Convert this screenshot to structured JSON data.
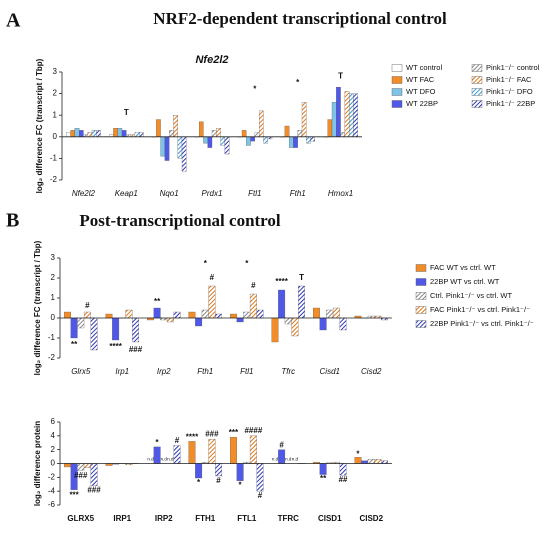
{
  "panels": [
    {
      "letter": "A",
      "heading": "NRF2-dependent transcriptional control"
    },
    {
      "letter": "B",
      "heading": "Post-transcriptional control"
    }
  ],
  "chart_data": [
    {
      "type": "bar",
      "title": "Nfe2l2",
      "ylabel": "log₂ difference FC (transcript / Tbp)",
      "categories": [
        "Nfe2l2",
        "Keap1",
        "Nqo1",
        "Prdx1",
        "Ftl1",
        "Fth1",
        "Hmox1"
      ],
      "ylim": [
        -2,
        3
      ],
      "yticks": [
        -2,
        -1,
        0,
        1,
        2,
        3
      ],
      "legend": "right",
      "series": [
        {
          "name": "WT control",
          "color": "#ffffff",
          "values": [
            0.2,
            0.1,
            0.0,
            0.0,
            0.0,
            0.0,
            0.0
          ]
        },
        {
          "name": "WT FAC",
          "color": "#f28c28",
          "values": [
            0.3,
            0.4,
            0.8,
            0.7,
            0.3,
            0.5,
            0.8
          ]
        },
        {
          "name": "WT DFO",
          "color": "#7fc4e8",
          "values": [
            0.4,
            0.4,
            -0.9,
            -0.3,
            -0.4,
            -0.5,
            1.6
          ]
        },
        {
          "name": "WT 22BP",
          "color": "#5058e8",
          "values": [
            0.3,
            0.3,
            -1.1,
            -0.5,
            -0.2,
            -0.5,
            2.3
          ]
        },
        {
          "name": "Pink1⁻/⁻ control",
          "color": "#888888",
          "hatch": true,
          "values": [
            0.1,
            0.1,
            0.3,
            0.3,
            0.2,
            0.3,
            0.2
          ]
        },
        {
          "name": "Pink1⁻/⁻ FAC",
          "color": "#e07818",
          "hatch": true,
          "values": [
            0.2,
            0.1,
            1.0,
            0.4,
            1.2,
            1.6,
            2.1
          ]
        },
        {
          "name": "Pink1⁻/⁻ DFO",
          "color": "#3a9ad0",
          "hatch": true,
          "values": [
            0.3,
            0.2,
            -1.0,
            -0.4,
            -0.3,
            -0.3,
            2.0
          ]
        },
        {
          "name": "Pink1⁻/⁻ 22BP",
          "color": "#3038b8",
          "hatch": true,
          "values": [
            0.3,
            0.2,
            -1.6,
            -0.8,
            -0.1,
            -0.2,
            2.0
          ]
        }
      ],
      "annotations": [
        {
          "text": "T",
          "category": "Keap1",
          "y": 1.1
        },
        {
          "text": "*",
          "category": "Ftl1",
          "y": 2.2
        },
        {
          "text": "*",
          "category": "Fth1",
          "y": 2.5
        },
        {
          "text": "T",
          "category": "Hmox1",
          "y": 2.8
        }
      ]
    },
    {
      "type": "bar",
      "ylabel": "log₂ difference FC (transcript / Tbp)",
      "categories": [
        "Glrx5",
        "Irp1",
        "Irp2",
        "Fth1",
        "Ftl1",
        "Tfrc",
        "Cisd1",
        "Cisd2"
      ],
      "ylim": [
        -2,
        3
      ],
      "yticks": [
        -2,
        -1,
        0,
        1,
        2,
        3
      ],
      "legend": "right",
      "series": [
        {
          "name": "FAC WT vs ctrl. WT",
          "color": "#f28c28",
          "values": [
            0.3,
            0.2,
            -0.1,
            0.3,
            0.2,
            -1.2,
            0.5,
            0.1
          ]
        },
        {
          "name": "22BP WT vs ctrl. WT",
          "color": "#5058e8",
          "values": [
            -1.0,
            -1.1,
            0.5,
            -0.4,
            -0.2,
            1.4,
            -0.6,
            0.0
          ]
        },
        {
          "name": "Ctrl. Pink1⁻/⁻ vs ctrl. WT",
          "color": "#888888",
          "hatch": true,
          "values": [
            -0.5,
            0.0,
            -0.1,
            0.4,
            0.3,
            -0.3,
            0.4,
            0.1
          ]
        },
        {
          "name": "FAC Pink1⁻/⁻ vs ctrl. Pink1⁻/⁻",
          "color": "#e07818",
          "hatch": true,
          "values": [
            0.3,
            0.4,
            -0.2,
            1.6,
            1.2,
            -0.9,
            0.5,
            0.1
          ]
        },
        {
          "name": "22BP Pink1⁻/⁻ vs ctrl. Pink1⁻/⁻",
          "color": "#3038b8",
          "hatch": true,
          "values": [
            -1.6,
            -1.2,
            0.3,
            0.2,
            0.4,
            1.6,
            -0.6,
            -0.1
          ]
        }
      ],
      "annotations": [
        {
          "text": "#",
          "category": "Glrx5",
          "series": "FAC Pink1⁻/⁻ vs ctrl. Pink1⁻/⁻",
          "y": 0.6
        },
        {
          "text": "**",
          "category": "Glrx5",
          "series": "22BP WT vs ctrl. WT",
          "y": -1.35
        },
        {
          "text": "****",
          "category": "Irp1",
          "series": "22BP WT vs ctrl. WT",
          "y": -1.45
        },
        {
          "text": "###",
          "category": "Irp1",
          "series": "22BP Pink1⁻/⁻ vs ctrl. Pink1⁻/⁻",
          "y": -1.6
        },
        {
          "text": "**",
          "category": "Irp2",
          "series": "22BP WT vs ctrl. WT",
          "y": 0.8
        },
        {
          "text": "*",
          "category": "Fth1",
          "y": 2.7
        },
        {
          "text": "#",
          "category": "Fth1",
          "series": "FAC Pink1⁻/⁻ vs ctrl. Pink1⁻/⁻",
          "y": 2.0
        },
        {
          "text": "*",
          "category": "Ftl1",
          "y": 2.7
        },
        {
          "text": "#",
          "category": "Ftl1",
          "series": "FAC Pink1⁻/⁻ vs ctrl. Pink1⁻/⁻",
          "y": 1.6
        },
        {
          "text": "****",
          "category": "Tfrc",
          "series": "22BP WT vs ctrl. WT",
          "y": 1.8
        },
        {
          "text": "T",
          "category": "Tfrc",
          "series": "22BP Pink1⁻/⁻ vs ctrl. Pink1⁻/⁻",
          "y": 2.0
        }
      ]
    },
    {
      "type": "bar",
      "ylabel": "log₂ difference protein",
      "categories": [
        "GLRX5",
        "IRP1",
        "IRP2",
        "FTH1",
        "FTL1",
        "TFRC",
        "CISD1",
        "CISD2"
      ],
      "ylim": [
        -6,
        6
      ],
      "yticks": [
        -6,
        -4,
        -2,
        0,
        2,
        4,
        6
      ],
      "series": [
        {
          "name": "FAC WT vs ctrl. WT",
          "color": "#f28c28",
          "values": [
            -0.5,
            -0.3,
            null,
            3.2,
            3.8,
            null,
            0.2,
            0.9
          ]
        },
        {
          "name": "22BP WT vs ctrl. WT",
          "color": "#5058e8",
          "values": [
            -3.8,
            -0.1,
            2.4,
            -2.1,
            -2.5,
            2.0,
            -1.6,
            0.4
          ]
        },
        {
          "name": "Ctrl. Pink1⁻/⁻ vs ctrl. WT",
          "color": "#888888",
          "hatch": true,
          "values": [
            -1.0,
            0.0,
            null,
            0.2,
            0.2,
            null,
            0.1,
            0.6
          ]
        },
        {
          "name": "FAC Pink1⁻/⁻ vs ctrl. Pink1⁻/⁻",
          "color": "#e07818",
          "hatch": true,
          "values": [
            -0.6,
            -0.2,
            null,
            3.5,
            4.0,
            null,
            0.2,
            0.6
          ]
        },
        {
          "name": "22BP Pink1⁻/⁻ vs ctrl. Pink1⁻/⁻",
          "color": "#3038b8",
          "hatch": true,
          "values": [
            -3.2,
            0.0,
            2.6,
            -1.8,
            -4.0,
            0.0,
            -1.7,
            0.4
          ]
        }
      ],
      "annotations": [
        {
          "text": "###",
          "category": "GLRX5",
          "series": "Ctrl. Pink1⁻/⁻ vs ctrl. WT",
          "y": -1.8
        },
        {
          "text": "***",
          "category": "GLRX5",
          "series": "22BP WT vs ctrl. WT",
          "y": -4.6
        },
        {
          "text": "###",
          "category": "GLRX5",
          "series": "22BP Pink1⁻/⁻ vs ctrl. Pink1⁻/⁻",
          "y": -3.9
        },
        {
          "text": "n.d",
          "category": "IRP2",
          "series": "FAC WT vs ctrl. WT",
          "y": 0.6
        },
        {
          "text": "n.d",
          "category": "IRP2",
          "series": "Ctrl. Pink1⁻/⁻ vs ctrl. WT",
          "y": 0.6
        },
        {
          "text": "n.d",
          "category": "IRP2",
          "series": "FAC Pink1⁻/⁻ vs ctrl. Pink1⁻/⁻",
          "y": 0.6
        },
        {
          "text": "*",
          "category": "IRP2",
          "series": "22BP WT vs ctrl. WT",
          "y": 3.0
        },
        {
          "text": "#",
          "category": "IRP2",
          "series": "22BP Pink1⁻/⁻ vs ctrl. Pink1⁻/⁻",
          "y": 3.3
        },
        {
          "text": "****",
          "category": "FTH1",
          "series": "FAC WT vs ctrl. WT",
          "y": 3.8
        },
        {
          "text": "###",
          "category": "FTH1",
          "series": "FAC Pink1⁻/⁻ vs ctrl. Pink1⁻/⁻",
          "y": 4.2
        },
        {
          "text": "*",
          "category": "FTH1",
          "series": "22BP WT vs ctrl. WT",
          "y": -2.8
        },
        {
          "text": "#",
          "category": "FTH1",
          "series": "22BP Pink1⁻/⁻ vs ctrl. Pink1⁻/⁻",
          "y": -2.5
        },
        {
          "text": "***",
          "category": "FTL1",
          "series": "FAC WT vs ctrl. WT",
          "y": 4.4
        },
        {
          "text": "####",
          "category": "FTL1",
          "series": "FAC Pink1⁻/⁻ vs ctrl. Pink1⁻/⁻",
          "y": 4.7
        },
        {
          "text": "*",
          "category": "FTL1",
          "series": "22BP WT vs ctrl. WT",
          "y": -3.2
        },
        {
          "text": "#",
          "category": "FTL1",
          "series": "22BP Pink1⁻/⁻ vs ctrl. Pink1⁻/⁻",
          "y": -4.7
        },
        {
          "text": "n.d",
          "category": "TFRC",
          "series": "FAC WT vs ctrl. WT",
          "y": 0.6
        },
        {
          "text": "n.d",
          "category": "TFRC",
          "series": "Ctrl. Pink1⁻/⁻ vs ctrl. WT",
          "y": 0.6
        },
        {
          "text": "n.d",
          "category": "TFRC",
          "series": "FAC Pink1⁻/⁻ vs ctrl. Pink1⁻/⁻",
          "y": 0.6
        },
        {
          "text": "#",
          "category": "TFRC",
          "series": "22BP WT vs ctrl. WT",
          "y": 2.6
        },
        {
          "text": "**",
          "category": "CISD1",
          "series": "22BP WT vs ctrl. WT",
          "y": -2.2
        },
        {
          "text": "##",
          "category": "CISD1",
          "series": "22BP Pink1⁻/⁻ vs ctrl. Pink1⁻/⁻",
          "y": -2.4
        },
        {
          "text": "*",
          "category": "CISD2",
          "series": "FAC WT vs ctrl. WT",
          "y": 1.3
        }
      ]
    }
  ]
}
